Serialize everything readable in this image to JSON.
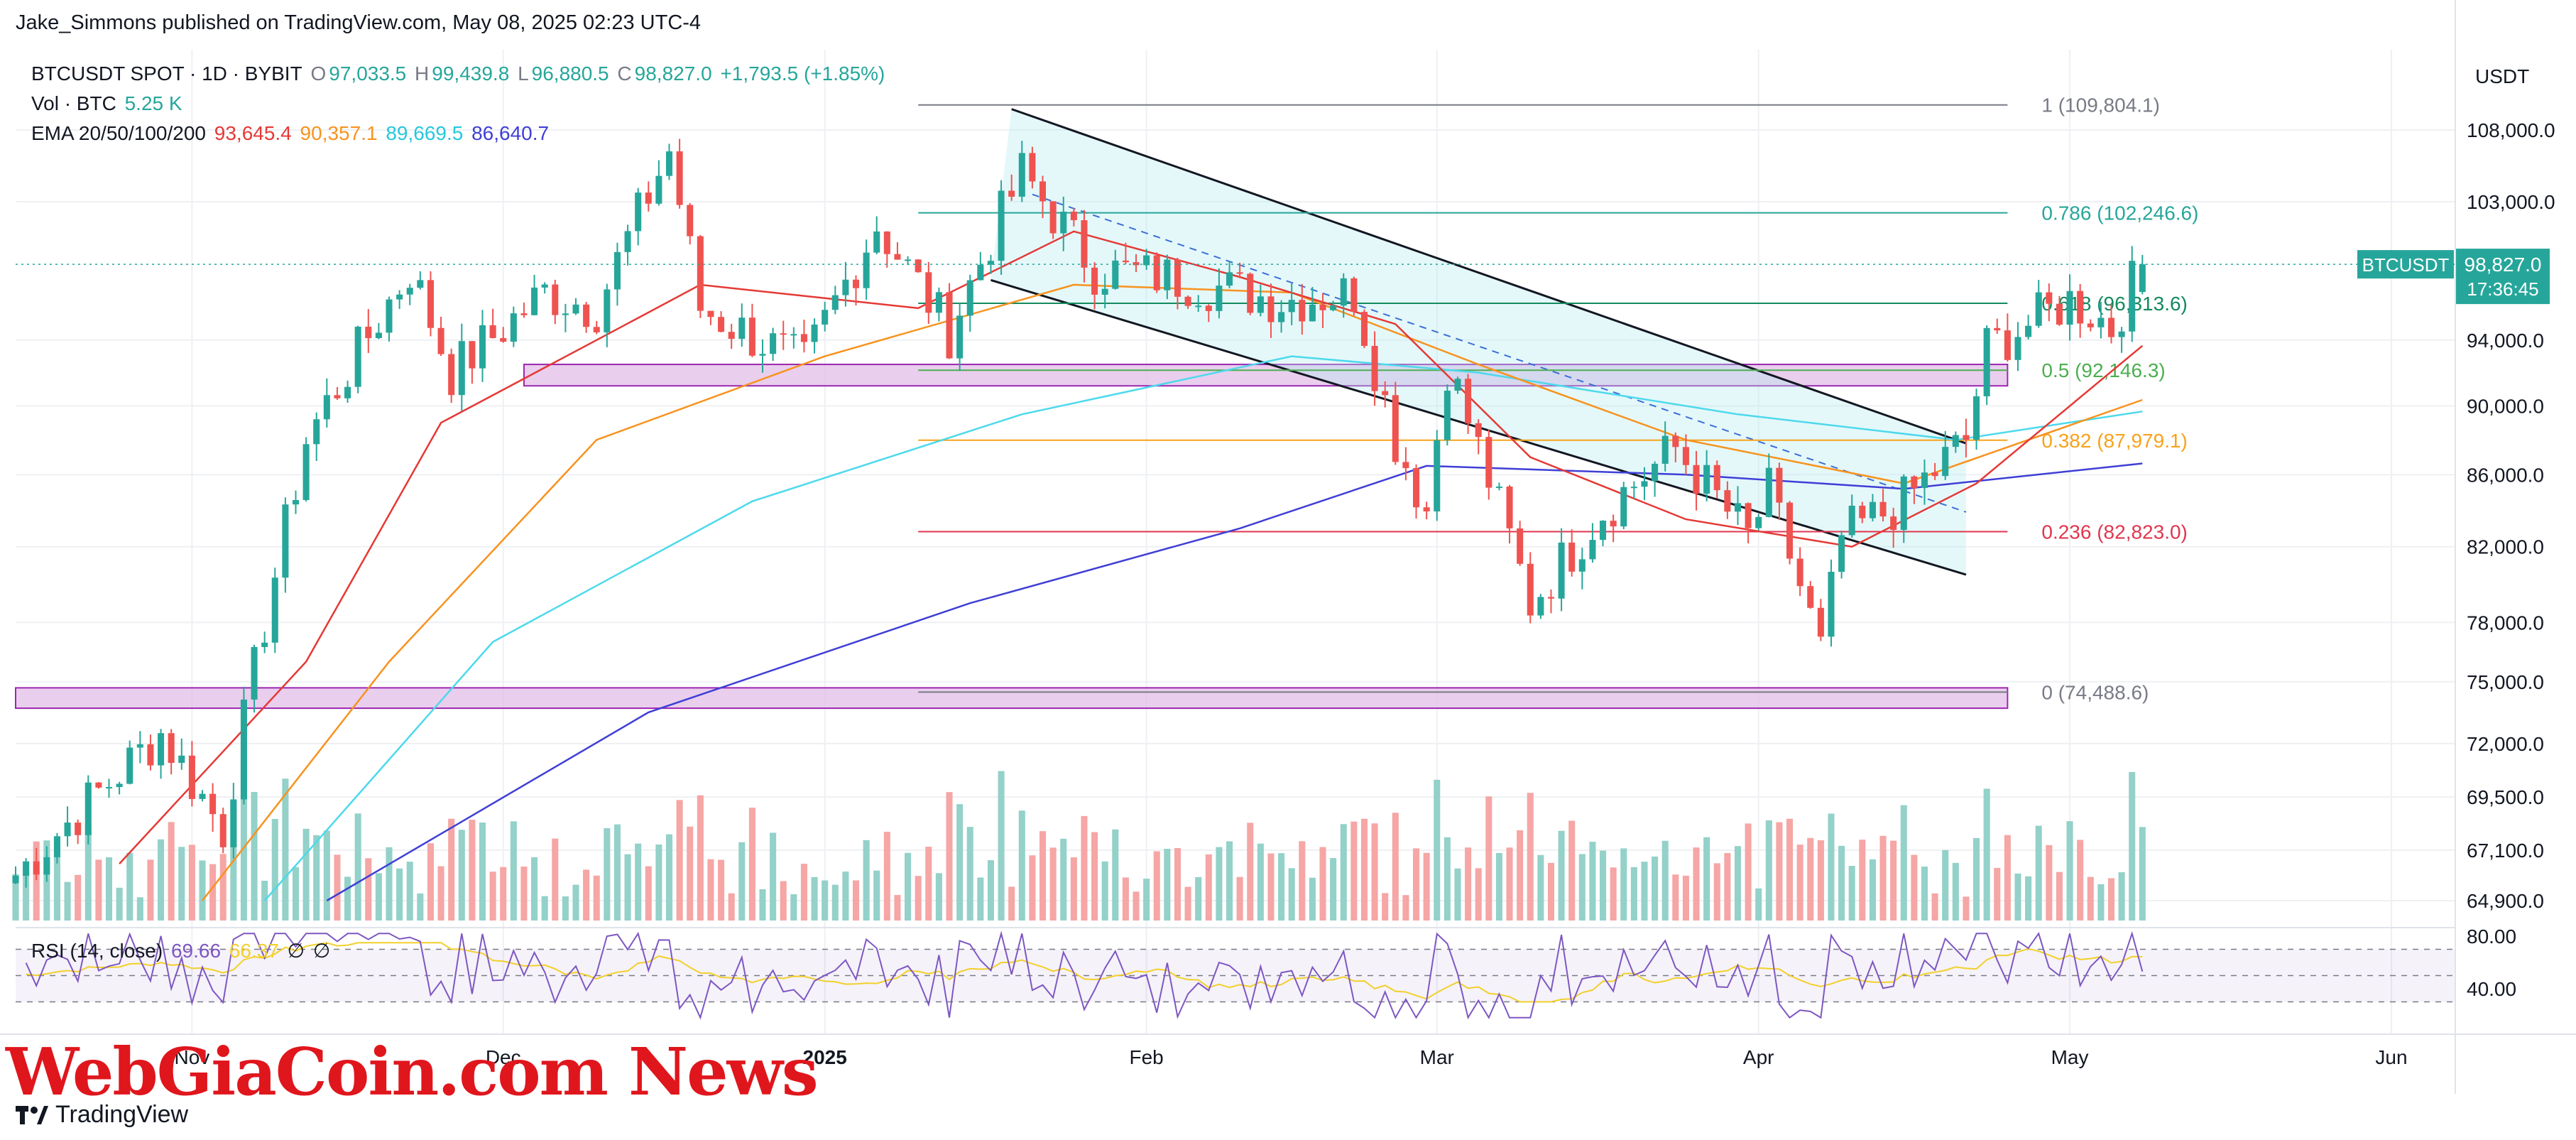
{
  "header": {
    "publisher": "Jake_Simmons published on TradingView.com, May 08, 2025 02:23 UTC-4"
  },
  "legend": {
    "symbol": "BTCUSDT SPOT · 1D · BYBIT",
    "o_label": "O",
    "o_value": "97,033.5",
    "h_label": "H",
    "h_value": "99,439.8",
    "l_label": "L",
    "l_value": "96,880.5",
    "c_label": "C",
    "c_value": "98,827.0",
    "change": "+1,793.5 (+1.85%)",
    "vol_label": "Vol · BTC",
    "vol_value": "5.25 K",
    "ema_label": "EMA 20/50/100/200",
    "ema20": "93,645.4",
    "ema50": "90,357.1",
    "ema100": "89,669.5",
    "ema200": "86,640.7",
    "rsi_label": "RSI (14, close)",
    "rsi_value": "69.66",
    "rsi_ma": "66.37",
    "rsi_x1": "∅",
    "rsi_x2": "∅"
  },
  "price_axis": {
    "currency": "USDT",
    "ticks": [
      "108,000.0",
      "103,000.0",
      "94,000.0",
      "90,000.0",
      "86,000.0",
      "82,000.0",
      "78,000.0",
      "75,000.0",
      "72,000.0",
      "69,500.0",
      "67,100.0",
      "64,900.0"
    ],
    "last_symbol": "BTCUSDT",
    "last_price": "98,827.0",
    "countdown": "17:36:45"
  },
  "rsi_axis": {
    "ticks": [
      "80.00",
      "40.00"
    ]
  },
  "time_axis": {
    "labels": [
      "Nov",
      "Dec",
      "2025",
      "Feb",
      "Mar",
      "Apr",
      "May",
      "Jun"
    ]
  },
  "fibonacci": [
    {
      "label": "1 (109,804.1)",
      "price": 109804.1,
      "color": "#787b86"
    },
    {
      "label": "0.786 (102,246.6)",
      "price": 102246.6,
      "color": "#26a69a"
    },
    {
      "label": "0.618 (96,313.6)",
      "price": 96313.6,
      "color": "#138a5e"
    },
    {
      "label": "0.5 (92,146.3)",
      "price": 92146.3,
      "color": "#4caf50"
    },
    {
      "label": "0.382 (87,979.1)",
      "price": 87979.1,
      "color": "#f7a21b"
    },
    {
      "label": "0.236 (82,823.0)",
      "price": 82823.0,
      "color": "#e0364f"
    },
    {
      "label": "0 (74,488.6)",
      "price": 74488.6,
      "color": "#787b86"
    }
  ],
  "colors": {
    "up": "#26a69a",
    "down": "#ef5350",
    "vol_up": "#93d1c9",
    "vol_down": "#f5a6a5",
    "ema20": "#e53935",
    "ema50": "#f7931e",
    "ema100": "#4dd9ec",
    "ema200": "#3f3fd6",
    "rsi": "#7e57c2",
    "rsi_ma": "#f2d02b",
    "zone": "#e1bee7",
    "zone_border": "#9c27b0"
  },
  "watermark": {
    "text": "WebGiaCoin.com News"
  },
  "brand": {
    "text": "TradingView"
  },
  "chart_data": {
    "type": "candlestick",
    "symbol": "BTCUSDT",
    "timeframe": "1D",
    "ylim": [
      64500,
      111000
    ],
    "zones": [
      {
        "x_start": "2024-12-03",
        "x_end": "2025-04-25",
        "low": 91200,
        "high": 92500
      },
      {
        "x_start": "2024-10-15",
        "x_end": "2025-04-25",
        "low": 73700,
        "high": 74700
      }
    ],
    "channel": {
      "upper": [
        [
          "2025-01-19",
          109500
        ],
        [
          "2025-04-21",
          87800
        ]
      ],
      "lower": [
        [
          "2025-01-17",
          97800
        ],
        [
          "2025-04-21",
          80500
        ]
      ],
      "mid": [
        [
          "2025-01-21",
          103500
        ],
        [
          "2025-04-21",
          83900
        ]
      ]
    },
    "anchors": [
      [
        "2024-10-15",
        66000
      ],
      [
        "2024-10-29",
        72500
      ],
      [
        "2024-11-04",
        68000
      ],
      [
        "2024-11-12",
        88000
      ],
      [
        "2024-11-22",
        98500
      ],
      [
        "2024-11-26",
        92000
      ],
      [
        "2024-12-05",
        97000
      ],
      [
        "2024-12-10",
        96000
      ],
      [
        "2024-12-17",
        106500
      ],
      [
        "2024-12-20",
        96000
      ],
      [
        "2024-12-30",
        92500
      ],
      [
        "2025-01-06",
        101500
      ],
      [
        "2025-01-13",
        94500
      ],
      [
        "2025-01-20",
        105000
      ],
      [
        "2025-01-27",
        98500
      ],
      [
        "2025-02-03",
        98000
      ],
      [
        "2025-02-14",
        96500
      ],
      [
        "2025-02-21",
        97000
      ],
      [
        "2025-02-25",
        88000
      ],
      [
        "2025-02-28",
        84000
      ],
      [
        "2025-03-02",
        92500
      ],
      [
        "2025-03-10",
        79000
      ],
      [
        "2025-03-17",
        84000
      ],
      [
        "2025-03-24",
        87500
      ],
      [
        "2025-03-31",
        82500
      ],
      [
        "2025-04-02",
        85000
      ],
      [
        "2025-04-07",
        76500
      ],
      [
        "2025-04-09",
        82500
      ],
      [
        "2025-04-15",
        84500
      ],
      [
        "2025-04-21",
        88000
      ],
      [
        "2025-04-23",
        93500
      ],
      [
        "2025-05-01",
        96500
      ],
      [
        "2025-05-03",
        95800
      ],
      [
        "2025-05-05",
        94800
      ],
      [
        "2025-05-08",
        98827
      ]
    ],
    "ema_curves": {
      "ema20": [
        [
          "2024-10-25",
          66500
        ],
        [
          "2024-11-12",
          76000
        ],
        [
          "2024-11-25",
          89000
        ],
        [
          "2024-12-10",
          94000
        ],
        [
          "2024-12-20",
          97500
        ],
        [
          "2025-01-10",
          96000
        ],
        [
          "2025-01-25",
          101000
        ],
        [
          "2025-02-10",
          98000
        ],
        [
          "2025-02-25",
          95000
        ],
        [
          "2025-03-10",
          87000
        ],
        [
          "2025-03-25",
          83500
        ],
        [
          "2025-04-10",
          82000
        ],
        [
          "2025-04-22",
          85500
        ],
        [
          "2025-05-08",
          93645
        ]
      ],
      "ema50": [
        [
          "2024-11-02",
          64900
        ],
        [
          "2024-11-20",
          76000
        ],
        [
          "2024-12-10",
          88000
        ],
        [
          "2025-01-01",
          93000
        ],
        [
          "2025-01-25",
          97500
        ],
        [
          "2025-02-15",
          97000
        ],
        [
          "2025-03-05",
          92500
        ],
        [
          "2025-03-25",
          88000
        ],
        [
          "2025-04-15",
          85500
        ],
        [
          "2025-05-08",
          90357
        ]
      ],
      "ema100": [
        [
          "2024-11-08",
          64900
        ],
        [
          "2024-11-30",
          77000
        ],
        [
          "2024-12-25",
          84500
        ],
        [
          "2025-01-20",
          89500
        ],
        [
          "2025-02-15",
          93000
        ],
        [
          "2025-03-05",
          92000
        ],
        [
          "2025-03-30",
          89500
        ],
        [
          "2025-04-20",
          88000
        ],
        [
          "2025-05-08",
          89670
        ]
      ],
      "ema200": [
        [
          "2024-11-14",
          64900
        ],
        [
          "2024-12-15",
          73500
        ],
        [
          "2025-01-15",
          79000
        ],
        [
          "2025-02-10",
          83000
        ],
        [
          "2025-02-28",
          86500
        ],
        [
          "2025-03-25",
          86000
        ],
        [
          "2025-04-15",
          85200
        ],
        [
          "2025-05-08",
          86641
        ]
      ]
    },
    "last": {
      "date": "2025-05-08",
      "open": 97033.5,
      "high": 99439.8,
      "low": 96880.5,
      "close": 98827.0
    }
  }
}
